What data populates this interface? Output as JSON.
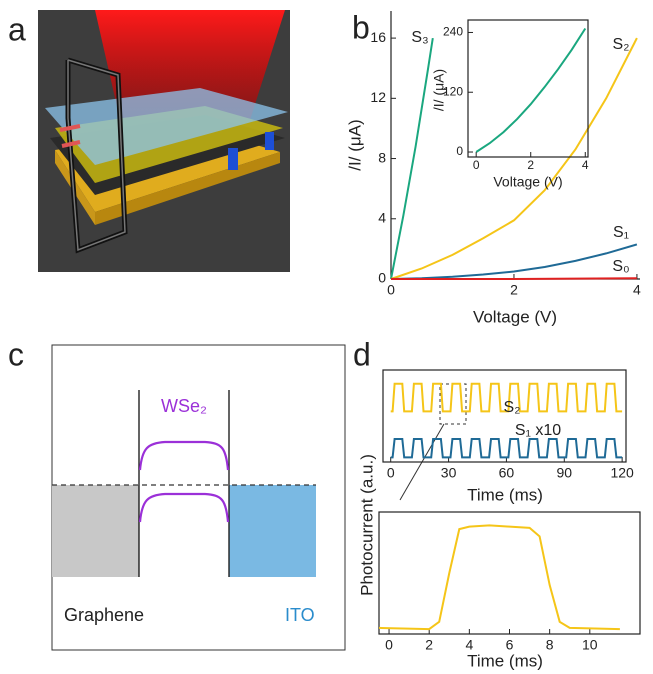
{
  "panel_labels": [
    "a",
    "b",
    "c",
    "d"
  ],
  "diagram": {
    "material": "WSe₂",
    "left": "Graphene",
    "right": "ITO"
  },
  "chart_data": [
    {
      "type": "line",
      "xlabel": "Voltage (V)",
      "ylabel": "/I/ (μA)",
      "xlim": [
        0,
        4.05
      ],
      "ylim": [
        0,
        17.8
      ],
      "xticks": [
        0,
        2,
        4
      ],
      "yticks": [
        0,
        4,
        8,
        12,
        16
      ],
      "series": [
        {
          "name": "S₃",
          "color": "#1aa77f",
          "x": [
            0,
            0.2,
            0.4,
            0.6,
            0.68
          ],
          "values": [
            0,
            4.2,
            8.8,
            13.9,
            16
          ]
        },
        {
          "name": "S₂",
          "color": "#f5c518",
          "x": [
            0,
            0.5,
            1,
            1.5,
            2,
            2.5,
            3,
            3.5,
            4
          ],
          "values": [
            0,
            0.7,
            1.6,
            2.7,
            3.9,
            5.9,
            8.6,
            12.0,
            16.0
          ]
        },
        {
          "name": "S₁",
          "color": "#1f6a96",
          "x": [
            0,
            0.5,
            1,
            1.5,
            2,
            2.5,
            3,
            3.5,
            4
          ],
          "values": [
            0,
            0.05,
            0.15,
            0.3,
            0.5,
            0.8,
            1.2,
            1.7,
            2.3
          ]
        },
        {
          "name": "S₀",
          "color": "#e02020",
          "x": [
            0,
            2,
            4
          ],
          "values": [
            0,
            0,
            0.05
          ]
        }
      ]
    },
    {
      "type": "line",
      "xlabel": "Voltage (V)",
      "ylabel": "/I/ (μA)",
      "xlim": [
        -0.3,
        4.1
      ],
      "ylim": [
        -10,
        265
      ],
      "xticks": [
        0,
        2,
        4
      ],
      "yticks": [
        0,
        120,
        240
      ],
      "series": [
        {
          "color": "#1aa77f",
          "x": [
            0,
            0.5,
            1,
            1.5,
            2,
            2.5,
            3,
            3.5,
            4
          ],
          "values": [
            0,
            18,
            40,
            66,
            96,
            130,
            166,
            205,
            248
          ]
        }
      ]
    },
    {
      "type": "line",
      "xlabel": "Time (ms)",
      "ylabel": "Photocurrent (a.u.)",
      "xlim": [
        -4,
        122
      ],
      "ylim": [
        0,
        1
      ],
      "xticks": [
        0,
        30,
        60,
        90,
        120
      ],
      "series": [
        {
          "name": "S₂",
          "color": "#f5c518",
          "x": [
            0,
            1,
            2,
            6,
            7,
            11,
            12,
            16,
            17,
            21,
            22,
            26,
            27,
            31,
            32,
            36,
            37,
            41,
            42,
            46,
            47,
            51,
            52,
            56,
            57,
            61,
            62,
            66,
            67,
            71,
            72,
            76,
            77,
            81,
            82,
            86,
            87,
            91,
            92,
            96,
            97,
            101,
            102,
            106,
            107,
            111,
            112,
            116,
            117,
            120
          ],
          "values": [
            0.55,
            0.55,
            0.85,
            0.85,
            0.55,
            0.55,
            0.85,
            0.85,
            0.55,
            0.55,
            0.85,
            0.85,
            0.55,
            0.55,
            0.85,
            0.85,
            0.55,
            0.55,
            0.85,
            0.85,
            0.55,
            0.55,
            0.85,
            0.85,
            0.55,
            0.55,
            0.85,
            0.85,
            0.55,
            0.55,
            0.85,
            0.85,
            0.55,
            0.55,
            0.85,
            0.85,
            0.55,
            0.55,
            0.85,
            0.85,
            0.55,
            0.55,
            0.85,
            0.85,
            0.55,
            0.55,
            0.85,
            0.85,
            0.55,
            0.55
          ]
        },
        {
          "name": "S₁ x10",
          "color": "#1f6a96",
          "x": [
            0,
            1,
            2,
            6,
            7,
            11,
            12,
            16,
            17,
            21,
            22,
            26,
            27,
            31,
            32,
            36,
            37,
            41,
            42,
            46,
            47,
            51,
            52,
            56,
            57,
            61,
            62,
            66,
            67,
            71,
            72,
            76,
            77,
            81,
            82,
            86,
            87,
            91,
            92,
            96,
            97,
            101,
            102,
            106,
            107,
            111,
            112,
            116,
            117,
            120
          ],
          "values": [
            0.05,
            0.05,
            0.25,
            0.25,
            0.05,
            0.05,
            0.25,
            0.25,
            0.05,
            0.05,
            0.25,
            0.25,
            0.05,
            0.05,
            0.25,
            0.25,
            0.05,
            0.05,
            0.25,
            0.25,
            0.05,
            0.05,
            0.25,
            0.25,
            0.05,
            0.05,
            0.25,
            0.25,
            0.05,
            0.05,
            0.25,
            0.25,
            0.05,
            0.05,
            0.25,
            0.25,
            0.05,
            0.05,
            0.25,
            0.25,
            0.05,
            0.05,
            0.25,
            0.25,
            0.05,
            0.05,
            0.25,
            0.25,
            0.05,
            0.05
          ]
        }
      ]
    },
    {
      "type": "line",
      "xlabel": "Time (ms)",
      "xlim": [
        -0.5,
        12.5
      ],
      "ylim": [
        0,
        1
      ],
      "xticks": [
        0,
        2,
        4,
        6,
        8,
        10
      ],
      "series": [
        {
          "color": "#f5c518",
          "x": [
            -0.5,
            2,
            2.5,
            3,
            3.5,
            4,
            5,
            6,
            7,
            7.5,
            8,
            8.5,
            9,
            11.5
          ],
          "values": [
            0.05,
            0.04,
            0.1,
            0.5,
            0.86,
            0.88,
            0.89,
            0.88,
            0.87,
            0.8,
            0.4,
            0.1,
            0.05,
            0.04
          ]
        }
      ]
    }
  ]
}
